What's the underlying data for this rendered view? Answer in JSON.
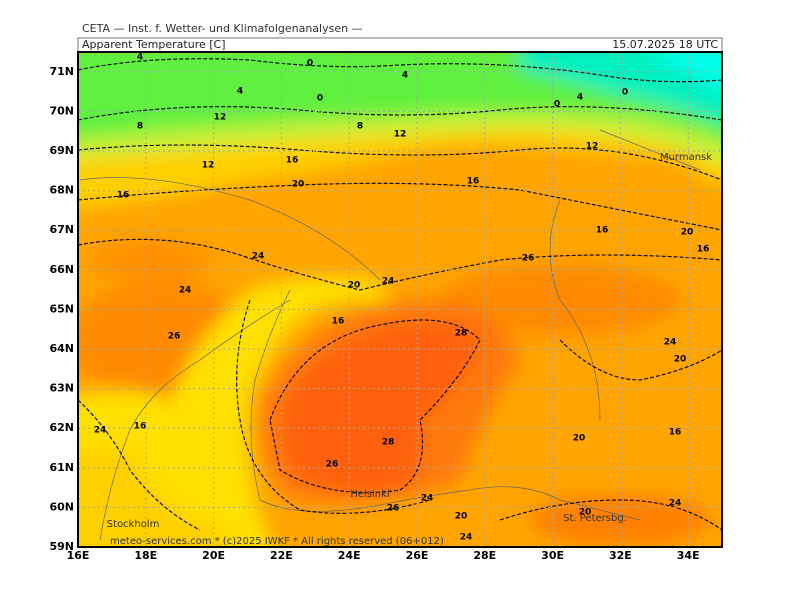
{
  "header": {
    "source": "CETA — Inst. f. Wetter- und Klimafolgenanalysen —",
    "title": "Apparent Temperature [C]",
    "datetime": "15.07.2025 18 UTC"
  },
  "axes": {
    "x_labels": [
      "16E",
      "18E",
      "20E",
      "22E",
      "24E",
      "26E",
      "28E",
      "30E",
      "32E",
      "34E"
    ],
    "y_labels": [
      "59N",
      "60N",
      "61N",
      "62N",
      "63N",
      "64N",
      "65N",
      "66N",
      "67N",
      "68N",
      "69N",
      "70N",
      "71N"
    ]
  },
  "places": [
    "Murmansk",
    "Helsinki",
    "Stockholm",
    "St. Petersbg."
  ],
  "contour_labels": [
    "0",
    "4",
    "4",
    "4",
    "0",
    "8",
    "12",
    "8",
    "12",
    "0",
    "4",
    "0",
    "12",
    "12",
    "16",
    "20",
    "16",
    "16",
    "16",
    "20",
    "16",
    "24",
    "26",
    "24",
    "20",
    "24",
    "16",
    "26",
    "28",
    "24",
    "20",
    "24",
    "16",
    "20",
    "16",
    "28",
    "26",
    "24",
    "26",
    "20",
    "20",
    "24",
    "24"
  ],
  "footer": {
    "credit": "meteo-services.com * (c)2025 IWKF * All rights reserved (06+012)"
  }
}
